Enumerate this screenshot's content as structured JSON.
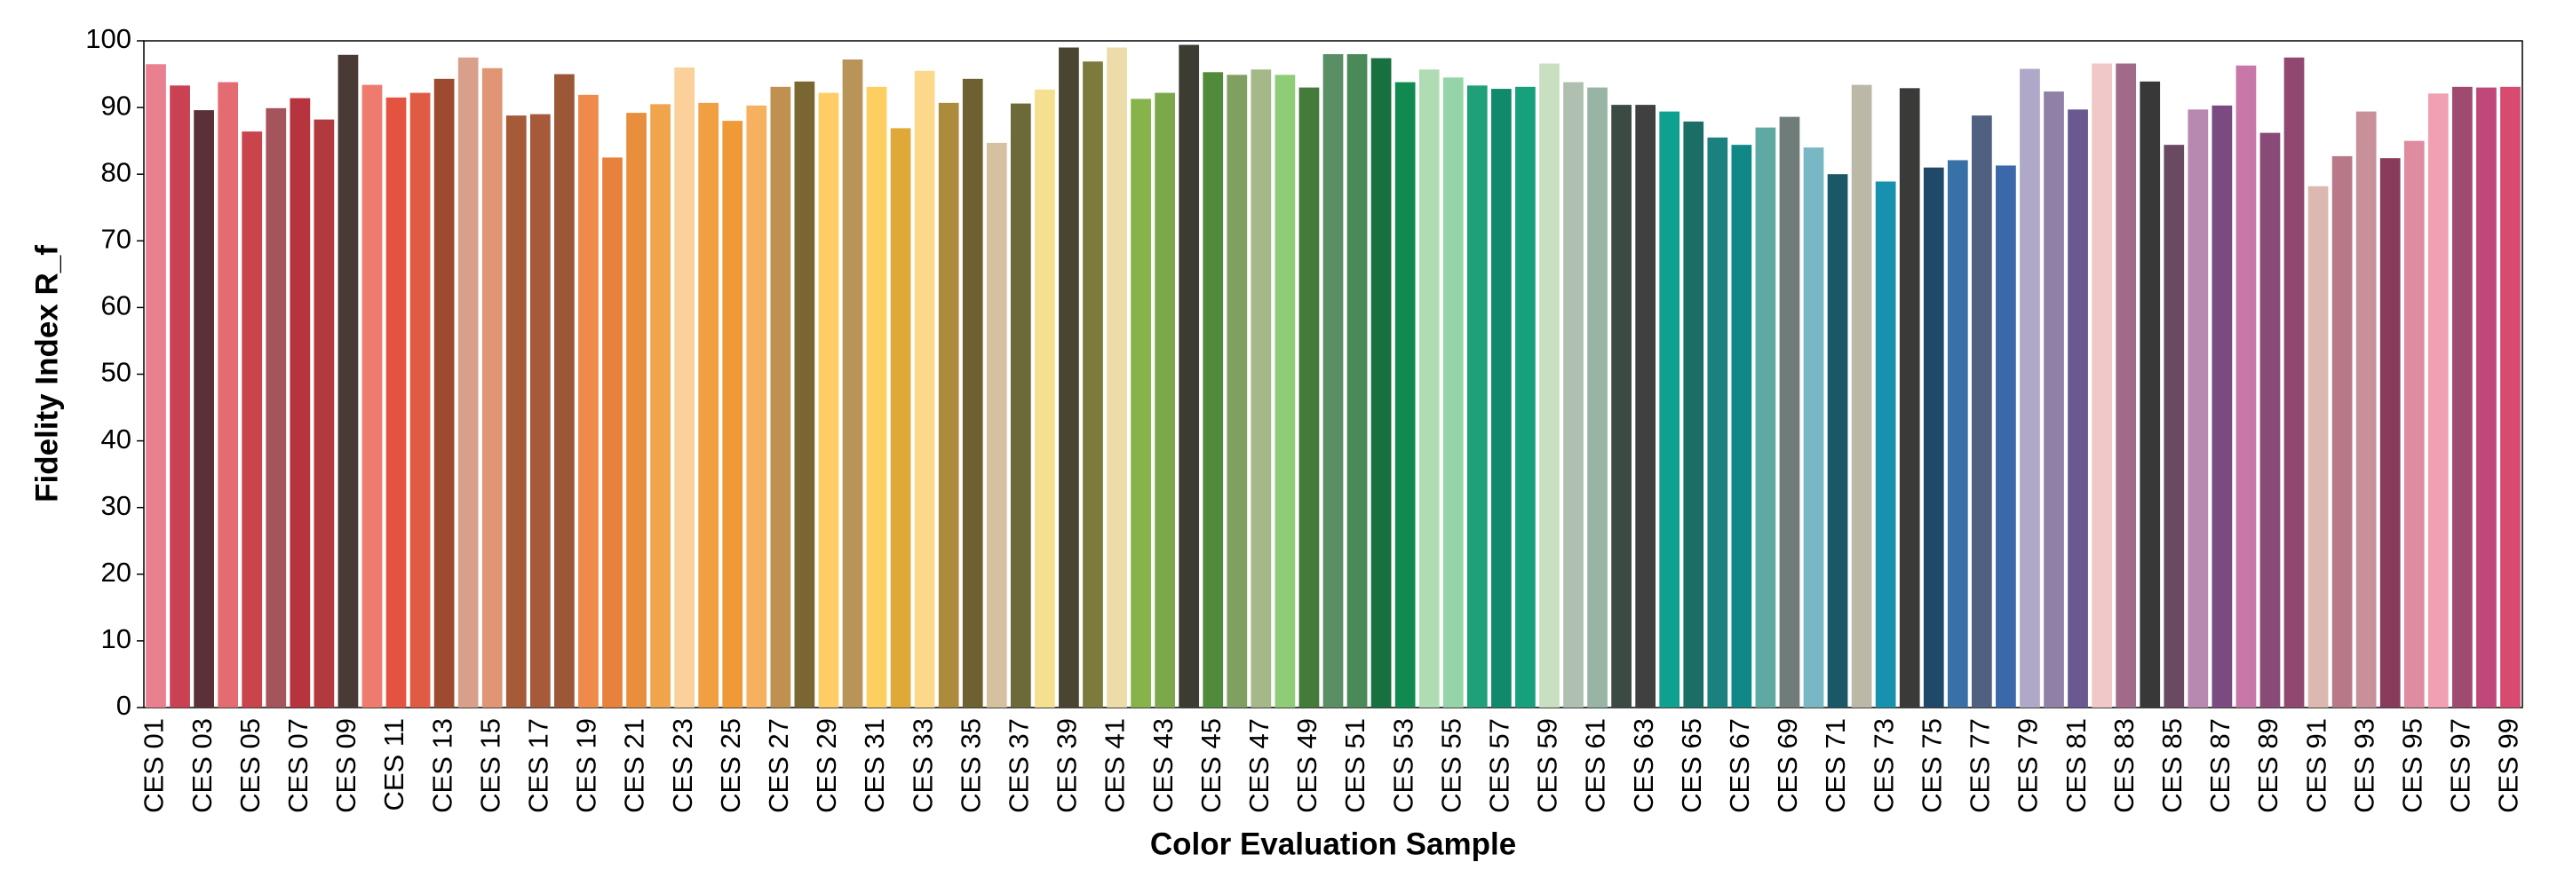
{
  "chart_data": {
    "type": "bar",
    "x_label": "Color Evaluation Sample",
    "y_label": "Fidelity Index R_f",
    "categories": [
      "CES 01",
      null,
      "CES 03",
      null,
      "CES 05",
      null,
      "CES 07",
      null,
      "CES 09",
      null,
      "CES 11",
      null,
      "CES 13",
      null,
      "CES 15",
      null,
      "CES 17",
      null,
      "CES 19",
      null,
      "CES 21",
      null,
      "CES 23",
      null,
      "CES 25",
      null,
      "CES 27",
      null,
      "CES 29",
      null,
      "CES 31",
      null,
      "CES 33",
      null,
      "CES 35",
      null,
      "CES 37",
      null,
      "CES 39",
      null,
      "CES 41",
      null,
      "CES 43",
      null,
      "CES 45",
      null,
      "CES 47",
      null,
      "CES 49",
      null,
      "CES 51",
      null,
      "CES 53",
      null,
      "CES 55",
      null,
      "CES 57",
      null,
      "CES 59",
      null,
      "CES 61",
      null,
      "CES 63",
      null,
      "CES 65",
      null,
      "CES 67",
      null,
      "CES 69",
      null,
      "CES 71",
      null,
      "CES 73",
      null,
      "CES 75",
      null,
      "CES 77",
      null,
      "CES 79",
      null,
      "CES 81",
      null,
      "CES 83",
      null,
      "CES 85",
      null,
      "CES 87",
      null,
      "CES 89",
      null,
      "CES 91",
      null,
      "CES 93",
      null,
      "CES 95",
      null,
      "CES 97",
      null,
      "CES 99"
    ],
    "values": [
      96.5,
      93.3,
      89.6,
      93.8,
      86.4,
      89.9,
      91.4,
      88.2,
      97.9,
      93.4,
      91.5,
      92.2,
      94.3,
      97.5,
      95.9,
      88.8,
      89.0,
      95.0,
      91.9,
      82.5,
      89.2,
      90.5,
      96.0,
      90.7,
      88.0,
      90.3,
      93.1,
      93.9,
      92.2,
      97.2,
      93.1,
      86.9,
      95.5,
      90.7,
      94.3,
      84.7,
      90.6,
      92.7,
      99.0,
      96.9,
      99.0,
      91.3,
      92.2,
      99.4,
      95.3,
      94.9,
      95.7,
      94.9,
      93.0,
      98.0,
      98.0,
      97.4,
      93.8,
      95.7,
      94.5,
      93.3,
      92.8,
      93.1,
      96.6,
      93.8,
      93.0,
      90.4,
      90.4,
      89.4,
      87.9,
      85.5,
      84.4,
      87.0,
      88.6,
      84.0,
      80.0,
      93.4,
      78.9,
      92.9,
      81.0,
      82.1,
      88.8,
      81.3,
      95.8,
      92.4,
      89.7,
      96.6,
      96.6,
      93.9,
      84.4,
      89.7,
      90.3,
      96.3,
      86.2,
      97.5,
      78.2,
      82.7,
      89.4,
      82.4,
      85.0,
      92.1,
      93.1,
      93.0,
      93.1
    ],
    "colors": [
      "#e8808f",
      "#c94152",
      "#5a3136",
      "#e56b72",
      "#c9444b",
      "#a4545a",
      "#b7343e",
      "#b23a3f",
      "#4a3a35",
      "#ee7b6e",
      "#e4533f",
      "#e05a44",
      "#9e4a30",
      "#d8a08a",
      "#e09574",
      "#a65a38",
      "#a55a3a",
      "#9c5836",
      "#f08a4b",
      "#e8813c",
      "#e88e3c",
      "#f0a54c",
      "#fcd09a",
      "#f0a040",
      "#ef9a36",
      "#f5b060",
      "#c09050",
      "#7a6630",
      "#ffcc66",
      "#b89458",
      "#fdcf60",
      "#dfa93a",
      "#fcd88a",
      "#ac8c3c",
      "#6e6030",
      "#d5c0a0",
      "#6c6a38",
      "#f5e090",
      "#4a4530",
      "#7c7a3c",
      "#ebdcaa",
      "#86b44a",
      "#7aa84a",
      "#3c3c32",
      "#508a3a",
      "#7fa060",
      "#a4b888",
      "#8ecc78",
      "#447a3a",
      "#5a8e64",
      "#4a8a58",
      "#18703e",
      "#108a50",
      "#b0dcb4",
      "#94d4a8",
      "#20a078",
      "#108a6a",
      "#16a07c",
      "#c8e0c0",
      "#b0c0b0",
      "#98b4a4",
      "#3c4a44",
      "#404040",
      "#10a090",
      "#1a6e66",
      "#1a8080",
      "#108888",
      "#60a8a4",
      "#707c7a",
      "#78b8c4",
      "#1a5868",
      "#bcb8a8",
      "#1890b0",
      "#3a3a38",
      "#204868",
      "#3870a8",
      "#506080",
      "#3a68a8",
      "#b0a8c8",
      "#9080a8",
      "#6a5890",
      "#f0c8c8",
      "#a06a88",
      "#383838",
      "#6a4a60",
      "#b888b0",
      "#7a4a80",
      "#c878a8",
      "#8a4a78",
      "#904870",
      "#dcb8b0",
      "#b87888",
      "#c89098",
      "#8a3a5a",
      "#e08ca0",
      "#f0a0b0",
      "#a04a70",
      "#c04878",
      "#d84a70"
    ],
    "ylim": [
      0,
      100
    ],
    "yticks": [
      0,
      10,
      20,
      30,
      40,
      50,
      60,
      70,
      80,
      90,
      100
    ],
    "grid": false
  }
}
